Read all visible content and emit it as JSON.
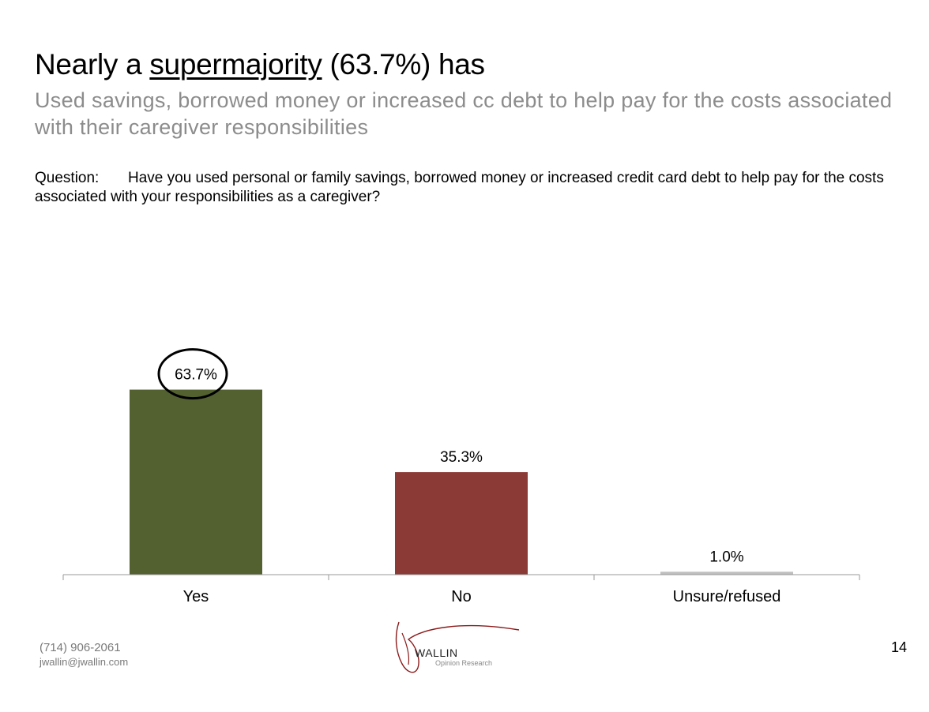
{
  "headline": {
    "prefix": "Nearly a ",
    "highlight": "supermajority",
    "suffix": " (63.7%) has"
  },
  "subtitle": "Used savings, borrowed money or increased cc debt to help pay for the costs associated with their caregiver responsibilities",
  "question": {
    "label": "Question:",
    "text": "Have you used personal or family savings, borrowed money or increased credit card debt to help pay for the costs associated with your responsibilities as a caregiver?"
  },
  "chart_data": {
    "type": "bar",
    "categories": [
      "Yes",
      "No",
      "Unsure/refused"
    ],
    "values": [
      63.7,
      35.3,
      1.0
    ],
    "value_labels": [
      "63.7%",
      "35.3%",
      "1.0%"
    ],
    "colors": [
      "#536130",
      "#8b3a36",
      "#bfbfbf"
    ],
    "highlighted_index": 0,
    "title": "",
    "xlabel": "",
    "ylabel": "",
    "ylim": [
      0,
      100
    ],
    "grid": false
  },
  "footer": {
    "phone": "(714) 906-2061",
    "email": "jwallin@jwallin.com",
    "logo_name": "WALLIN",
    "logo_tagline": "Opinion Research",
    "page_number": "14"
  }
}
